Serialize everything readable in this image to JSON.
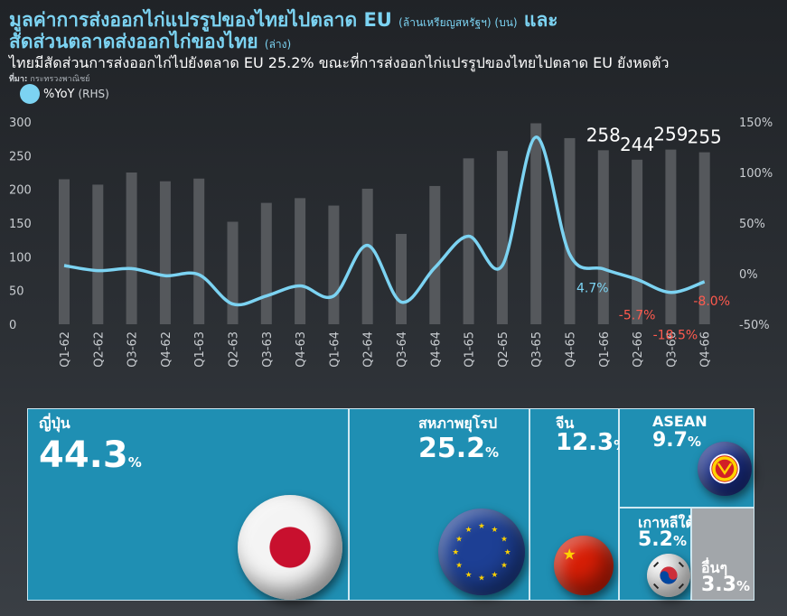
{
  "header": {
    "title_line1_main": "มูลค่าการส่งออกไก่แปรรูปของไทยไปตลาด EU",
    "title_line1_unit": "(ล้านเหรียญสหรัฐฯ) (บน)",
    "title_line1_and": "และ",
    "title_line2_main": "สัดส่วนตลาดส่งออกไก่ของไทย",
    "title_line2_unit": "(ล่าง)",
    "subtitle": "ไทยมีสัดส่วนการส่งออกไก่ไปยังตลาด EU 25.2% ขณะที่การส่งออกไก่แปรรูปของไทยไปตลาด EU ยังหดตัว",
    "source_label": "ที่มา:",
    "source_text": "กระทรวงพาณิชย์"
  },
  "legend": {
    "series_name": "%YoY",
    "axis_note": "(RHS)"
  },
  "colors": {
    "bar": "#55585c",
    "line": "#7cd3f2",
    "negative_label": "#ff5a4e",
    "positive_label": "#7cd3f2",
    "treemap": "#1f8fb3",
    "treemap_other": "#a2a6aa"
  },
  "chart_data": [
    {
      "type": "bar",
      "categories": [
        "Q1-62",
        "Q2-62",
        "Q3-62",
        "Q4-62",
        "Q1-63",
        "Q2-63",
        "Q3-63",
        "Q4-63",
        "Q1-64",
        "Q2-64",
        "Q3-64",
        "Q4-64",
        "Q1-65",
        "Q2-65",
        "Q3-65",
        "Q4-65",
        "Q1-66",
        "Q2-66",
        "Q3-66",
        "Q4-66"
      ],
      "series": [
        {
          "name": "",
          "axis": "left",
          "values": [
            215,
            207,
            225,
            212,
            216,
            152,
            180,
            187,
            176,
            201,
            134,
            205,
            246,
            257,
            298,
            276,
            258,
            244,
            259,
            255
          ]
        },
        {
          "name": "%YoY",
          "axis": "right",
          "type": "line",
          "values": [
            8,
            3,
            5,
            -2,
            -1,
            -30,
            -22,
            -12,
            -22,
            28,
            -28,
            6,
            37,
            8,
            135,
            19,
            4.7,
            -5.7,
            -18.5,
            -8.0
          ]
        }
      ],
      "bar_data_labels": {
        "Q1-66": "258",
        "Q2-66": "244",
        "Q3-66": "259",
        "Q4-66": "255"
      },
      "line_data_labels": {
        "Q1-66": "4.7%",
        "Q2-66": "-5.7%",
        "Q3-66": "-18.5%",
        "Q4-66": "-8.0%"
      },
      "ylim_left": [
        0,
        300
      ],
      "yticks_left": [
        "0",
        "50",
        "100",
        "150",
        "200",
        "250",
        "300"
      ],
      "ylim_right": [
        -50,
        150
      ],
      "yticks_right": [
        "-50%",
        "0%",
        "50%",
        "100%",
        "150%"
      ],
      "grid": false,
      "legend_position": "top-left"
    },
    {
      "type": "treemap",
      "items": [
        {
          "label": "ญี่ปุ่น",
          "value": 44.3,
          "value_text": "44.3",
          "unit": "%",
          "flag": "japan-flag-icon"
        },
        {
          "label": "สหภาพยุโรป",
          "value": 25.2,
          "value_text": "25.2",
          "unit": "%",
          "flag": "eu-flag-icon"
        },
        {
          "label": "จีน",
          "value": 12.3,
          "value_text": "12.3",
          "unit": "%",
          "flag": "china-flag-icon"
        },
        {
          "label": "ASEAN",
          "value": 9.7,
          "value_text": "9.7",
          "unit": "%",
          "flag": "asean-flag-icon"
        },
        {
          "label": "เกาหลีใต้",
          "value": 5.2,
          "value_text": "5.2",
          "unit": "%",
          "flag": "south-korea-flag-icon"
        },
        {
          "label": "อื่นๆ",
          "value": 3.3,
          "value_text": "3.3",
          "unit": "%",
          "flag": ""
        }
      ]
    }
  ]
}
